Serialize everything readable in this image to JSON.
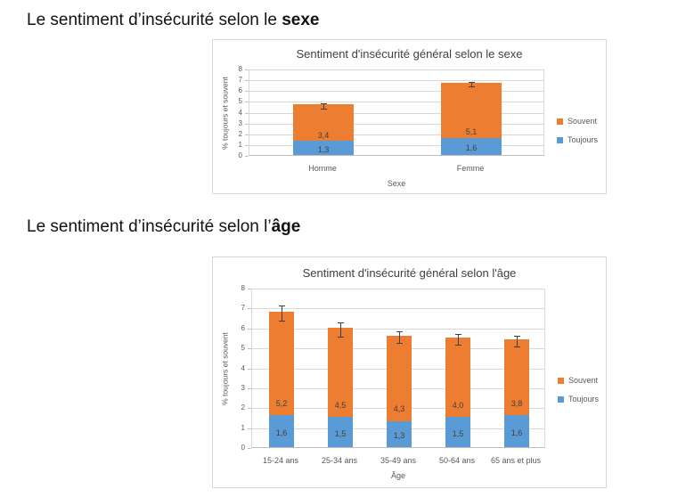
{
  "headings": [
    {
      "prefix": "Le sentiment d’insécurité selon le ",
      "bold": "sexe"
    },
    {
      "prefix": "Le sentiment d’insécurité selon l’",
      "bold": "âge"
    }
  ],
  "colors": {
    "souvent": "#ED7D31",
    "toujours": "#5B9BD5",
    "gridline": "#D9D9D9",
    "axis_line": "#BFBFBF",
    "axis_text": "#595959",
    "title_text": "#404040",
    "chart_border": "#D9D9D9"
  },
  "chart_data": [
    {
      "type": "bar",
      "stacked": true,
      "title": "Sentiment d'insécurité général selon le sexe",
      "xlabel": "Sexe",
      "ylabel": "% toujours et souvent",
      "ylim": [
        0,
        8
      ],
      "ytick_step": 1,
      "grid": true,
      "legend_position": "right",
      "categories": [
        "Homme",
        "Femme"
      ],
      "series": [
        {
          "name": "Toujours",
          "color": "#5B9BD5",
          "label_anchor": "center",
          "values": [
            1.3,
            1.6
          ],
          "labels": [
            "1,3",
            "1,6"
          ]
        },
        {
          "name": "Souvent",
          "color": "#ED7D31",
          "label_anchor": "base",
          "values": [
            3.4,
            5.1
          ],
          "labels": [
            "3,4",
            "5,1"
          ]
        }
      ],
      "totals": [
        4.7,
        6.7
      ],
      "error_bars": [
        0.25,
        0.2
      ],
      "legend": [
        {
          "label": "Souvent",
          "color": "#ED7D31"
        },
        {
          "label": "Toujours",
          "color": "#5B9BD5"
        }
      ]
    },
    {
      "type": "bar",
      "stacked": true,
      "title": "Sentiment d'insécurité général selon l'âge",
      "xlabel": "Âge",
      "ylabel": "% toujours et souvent",
      "ylim": [
        0,
        8
      ],
      "ytick_step": 1,
      "grid": true,
      "legend_position": "right",
      "categories": [
        "15-24 ans",
        "25-34 ans",
        "35-49 ans",
        "50-64 ans",
        "65 ans et plus"
      ],
      "series": [
        {
          "name": "Toujours",
          "color": "#5B9BD5",
          "label_anchor": "center",
          "values": [
            1.6,
            1.5,
            1.3,
            1.5,
            1.6
          ],
          "labels": [
            "1,6",
            "1,5",
            "1,3",
            "1,5",
            "1,6"
          ]
        },
        {
          "name": "Souvent",
          "color": "#ED7D31",
          "label_anchor": "base",
          "values": [
            5.2,
            4.5,
            4.3,
            4.0,
            3.8
          ],
          "labels": [
            "5,2",
            "4,5",
            "4,3",
            "4,0",
            "3,8"
          ]
        }
      ],
      "totals": [
        6.8,
        6.0,
        5.6,
        5.5,
        5.4
      ],
      "error_bars": [
        0.38,
        0.35,
        0.28,
        0.27,
        0.28
      ],
      "legend": [
        {
          "label": "Souvent",
          "color": "#ED7D31"
        },
        {
          "label": "Toujours",
          "color": "#5B9BD5"
        }
      ]
    }
  ]
}
